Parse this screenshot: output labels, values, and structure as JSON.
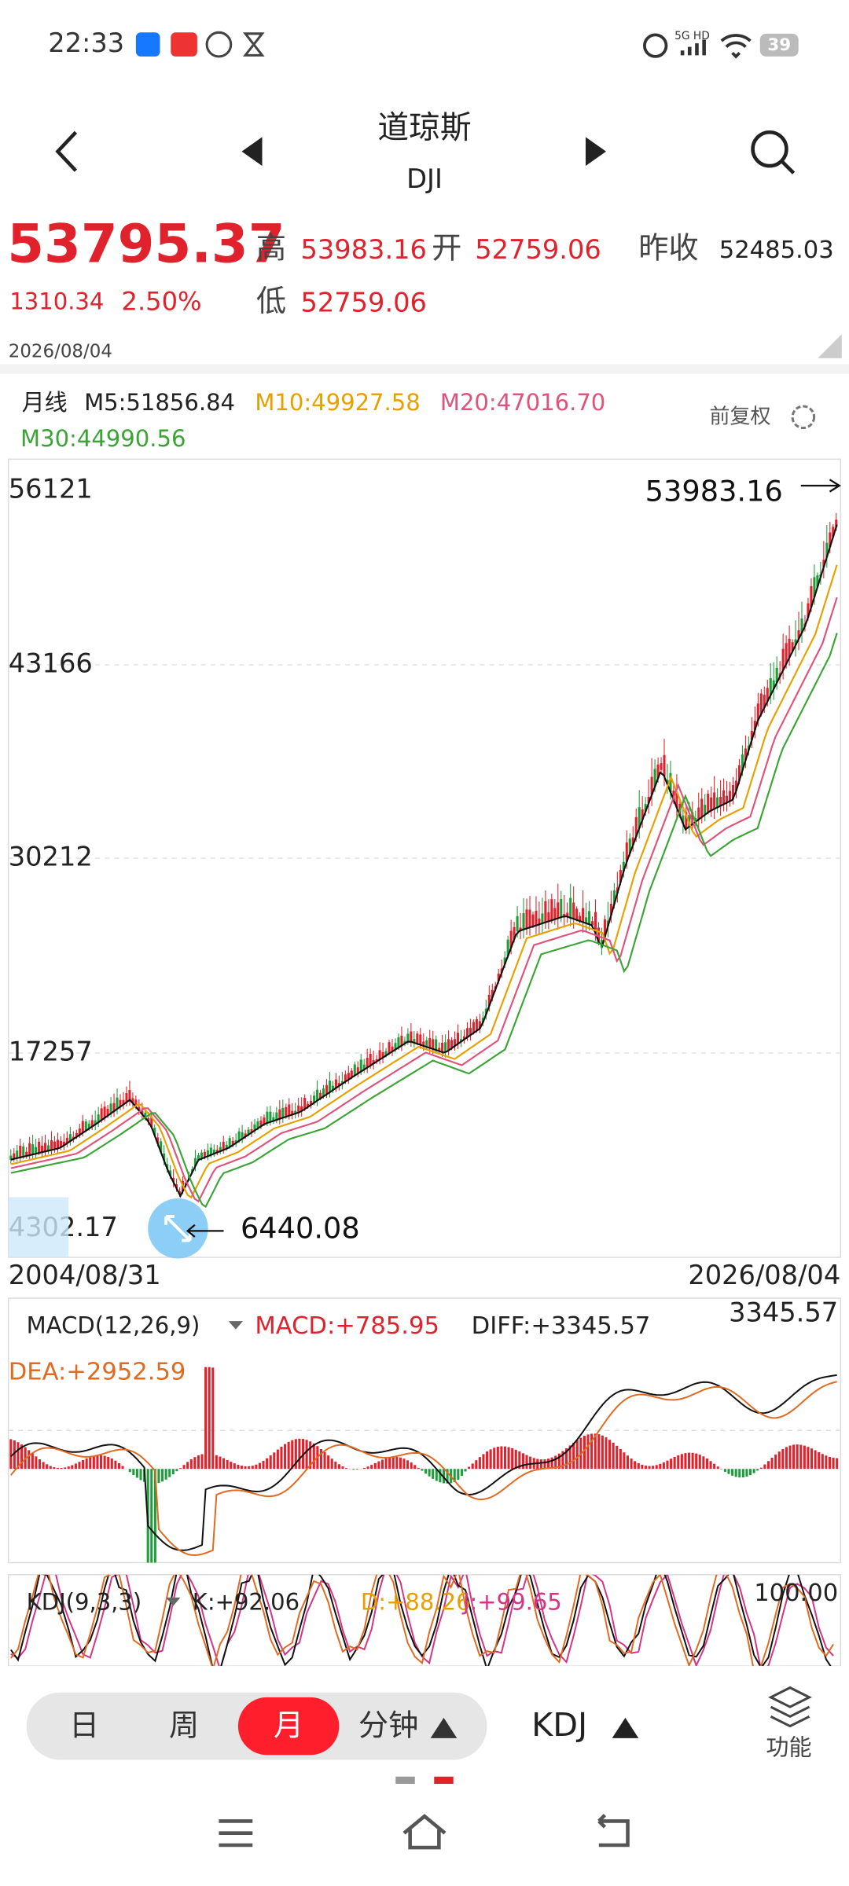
{
  "status_bar": {
    "time": "22:33",
    "network": "5G HD",
    "battery": "39"
  },
  "header": {
    "title": "道琼斯",
    "subtitle": "DJI"
  },
  "quote": {
    "price": "53795.37",
    "change": "1310.34",
    "change_pct": "2.50%",
    "high_label": "高",
    "high": "53983.16",
    "open_label": "开",
    "open": "52759.06",
    "prev_close_label": "昨收",
    "prev_close": "52485.03",
    "low_label": "低",
    "low": "52759.06",
    "date": "2026/08/04"
  },
  "chart": {
    "period": "月线",
    "ma": [
      "M5:51856.84",
      "M10:49927.58",
      "M20:47016.70",
      "M30:44990.56"
    ],
    "adjust": "前复权",
    "y_labels": [
      "56121",
      "43166",
      "30212",
      "17257",
      "4302.17"
    ],
    "max_label": "53983.16",
    "min_label": "6440.08",
    "x_start": "2004/08/31",
    "x_end": "2026/08/04"
  },
  "macd": {
    "title": "MACD(12,26,9)",
    "macd": "MACD:+785.95",
    "diff": "DIFF:+3345.57",
    "dea": "DEA:+2952.59",
    "max_label": "3345.57"
  },
  "kdj": {
    "title": "KDJ(9,3,3)",
    "k": "K:+92.06",
    "d": "D:+88.26",
    "j": "J:+99.65",
    "max_label": "100.00"
  },
  "tabs": {
    "items": [
      "日",
      "周",
      "月",
      "分钟"
    ],
    "selected": 2,
    "indicator": "KDJ",
    "function": "功能"
  }
}
